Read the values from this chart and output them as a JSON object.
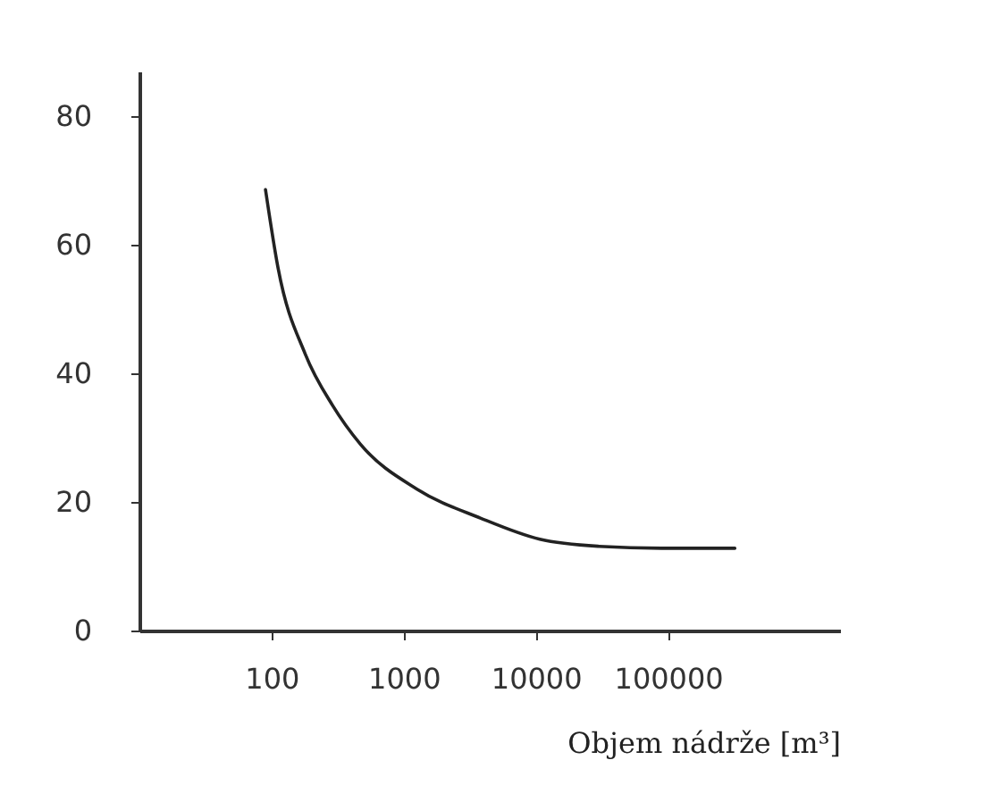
{
  "chart_data": {
    "type": "line",
    "xlabel": "Objem nádrže  [m³]",
    "x": [
      90,
      112,
      180,
      290,
      470,
      1260,
      3800,
      10700,
      30000,
      89000,
      320000
    ],
    "series": [
      {
        "color": "#222222",
        "values": [
          68.6,
          56.4,
          43,
          35,
          29,
          22,
          17.5,
          14.2,
          13.1,
          12.8,
          12.8
        ]
      }
    ],
    "log": "x",
    "xlim": [
      10,
      2000000
    ],
    "xticks": [
      100,
      1000,
      10000,
      100000
    ],
    "ylim": [
      0,
      87
    ],
    "yticks": [
      0,
      20,
      40,
      60,
      80
    ],
    "grid": false,
    "marker": "none",
    "line_style": "solid"
  }
}
